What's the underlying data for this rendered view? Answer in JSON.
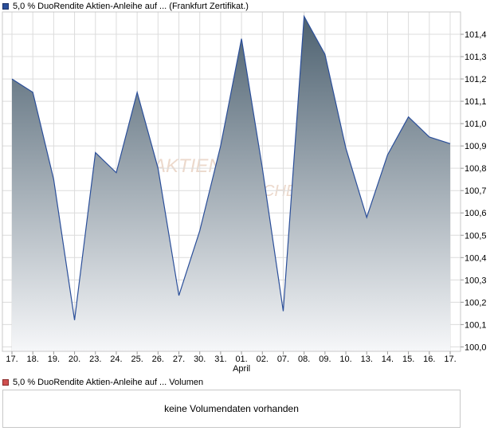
{
  "price_legend": {
    "label": "5,0 % DuoRendite Aktien-Anleihe auf ... (Frankfurt Zertifikat.)",
    "color": "#2b4f9a"
  },
  "volume_legend": {
    "label": "5,0 % DuoRendite Aktien-Anleihe auf ... Volumen",
    "color": "#d05050"
  },
  "volume_panel": {
    "message": "keine Volumendaten vorhanden"
  },
  "chart_data": {
    "type": "area",
    "x": [
      "17.",
      "18.",
      "19.",
      "20.",
      "23.",
      "24.",
      "25.",
      "26.",
      "27.",
      "30.",
      "31.",
      "01.",
      "02.",
      "07.",
      "08.",
      "09.",
      "10.",
      "13.",
      "14.",
      "15.",
      "16.",
      "17."
    ],
    "x_month_labels": [
      {
        "index": 11,
        "label": "April"
      }
    ],
    "series": [
      {
        "values": [
          101.2,
          101.14,
          100.75,
          100.12,
          100.87,
          100.78,
          101.14,
          100.8,
          100.23,
          100.52,
          100.9,
          101.38,
          100.8,
          100.16,
          101.48,
          101.31,
          100.89,
          100.58,
          100.86,
          101.03,
          100.94,
          100.91
        ]
      }
    ],
    "y_ticks": [
      "100,0",
      "100,1",
      "100,2",
      "100,3",
      "100,4",
      "100,5",
      "100,6",
      "100,7",
      "100,8",
      "100,9",
      "101,0",
      "101,1",
      "101,2",
      "101,3",
      "101,4"
    ],
    "ylim": [
      99.98,
      101.5
    ],
    "y_axis_position": "right",
    "grid": true,
    "line_color": "#2b4f9a",
    "fill_top_color": "#4d6170",
    "fill_bottom_color": "#f6f7f9",
    "grid_color": "#dcdcdc",
    "watermark": "AKTIEN CHECK"
  }
}
